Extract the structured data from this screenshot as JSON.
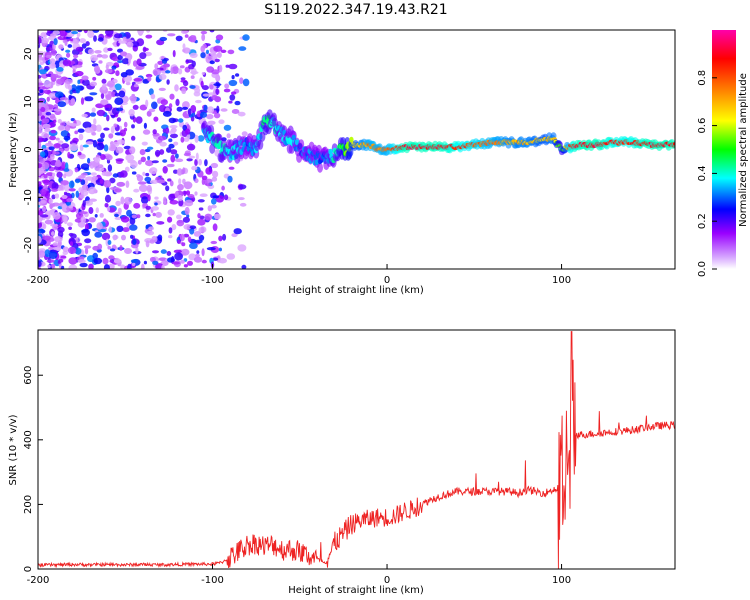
{
  "title": "S119.2022.347.19.43.R21",
  "chart_data": [
    {
      "type": "heatmap",
      "xlabel": "Height of straight line (km)",
      "ylabel": "Frequency (Hz)",
      "xlim": [
        -200,
        165
      ],
      "ylim": [
        -25,
        25
      ],
      "xticks": [
        -200,
        -100,
        0,
        100
      ],
      "yticks": [
        -20,
        -10,
        0,
        10,
        20
      ],
      "colorbar": {
        "label": "Normalized spectral amplitude",
        "range": [
          0.0,
          1.0
        ],
        "ticks": [
          "0.0",
          "0.2",
          "0.4",
          "0.6",
          "0.8"
        ],
        "colormap": [
          "#ffffff",
          "#9900ff",
          "#0000ff",
          "#00ffff",
          "#00ff00",
          "#ffff00",
          "#ff7f00",
          "#ff0000",
          "#ff00aa"
        ]
      },
      "ridge": {
        "x": [
          -105,
          -100,
          -95,
          -90,
          -85,
          -80,
          -75,
          -70,
          -65,
          -60,
          -55,
          -50,
          -45,
          -40,
          -35,
          -30,
          -25,
          -20,
          -15,
          -10,
          -5,
          0,
          10,
          20,
          30,
          40,
          50,
          60,
          70,
          80,
          90,
          95,
          100,
          105,
          110,
          120,
          130,
          140,
          150,
          165
        ],
        "y": [
          4,
          2,
          0,
          -1,
          0,
          1,
          0,
          6,
          5,
          3,
          2,
          0,
          -1,
          -2,
          -2,
          -1,
          0,
          1,
          1,
          1,
          0,
          0,
          0.5,
          0.5,
          0.5,
          0.5,
          1,
          1.5,
          1.5,
          1.5,
          2,
          2.5,
          0,
          0.5,
          1,
          1,
          1.5,
          1.5,
          1,
          1
        ],
        "amplitude": [
          0.35,
          0.4,
          0.4,
          0.35,
          0.35,
          0.3,
          0.35,
          0.45,
          0.4,
          0.35,
          0.35,
          0.3,
          0.3,
          0.3,
          0.3,
          0.4,
          0.5,
          0.6,
          0.7,
          0.75,
          0.75,
          0.75,
          0.9,
          0.9,
          0.9,
          0.85,
          0.8,
          0.75,
          0.7,
          0.7,
          0.65,
          0.7,
          0.45,
          0.85,
          0.9,
          0.9,
          0.85,
          0.85,
          0.9,
          0.9
        ]
      }
    },
    {
      "type": "line",
      "xlabel": "Height of straight line (km)",
      "ylabel": "SNR (10 * v/v)",
      "xlim": [
        -200,
        165
      ],
      "ylim": [
        0,
        740
      ],
      "xticks": [
        -200,
        -100,
        0,
        100
      ],
      "yticks": [
        0,
        200,
        400,
        600
      ],
      "color": "#ee2222",
      "series": [
        {
          "x": [
            -200,
            -190,
            -180,
            -170,
            -160,
            -150,
            -140,
            -130,
            -120,
            -110,
            -100,
            -95,
            -90,
            -85,
            -80,
            -75,
            -70,
            -65,
            -60,
            -55,
            -50,
            -45,
            -40,
            -35,
            -30,
            -25,
            -20,
            -15,
            -10,
            -5,
            0,
            5,
            10,
            15,
            20,
            25,
            30,
            40,
            50,
            60,
            70,
            75,
            80,
            85,
            90,
            95,
            98,
            100,
            102,
            104,
            106,
            108,
            110,
            120,
            130,
            140,
            150,
            160,
            165
          ],
          "y": [
            12,
            13,
            14,
            13,
            14,
            13,
            14,
            13,
            14,
            15,
            15,
            20,
            35,
            55,
            75,
            80,
            70,
            75,
            60,
            60,
            55,
            40,
            30,
            20,
            80,
            110,
            140,
            150,
            155,
            160,
            160,
            165,
            180,
            185,
            200,
            215,
            225,
            240,
            240,
            240,
            240,
            235,
            245,
            240,
            235,
            245,
            250,
            240,
            260,
            300,
            400,
            420,
            415,
            420,
            425,
            430,
            440,
            445,
            445
          ]
        }
      ]
    }
  ]
}
